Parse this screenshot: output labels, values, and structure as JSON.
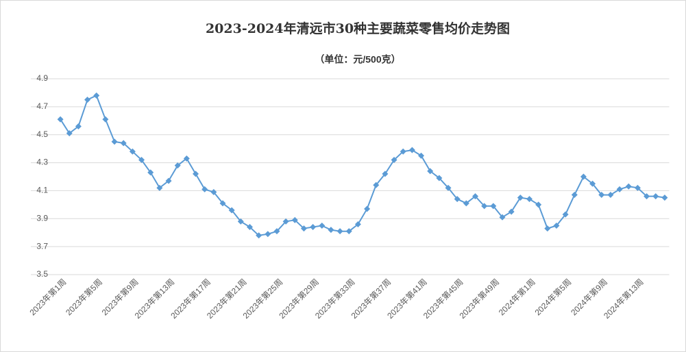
{
  "chart_data": {
    "type": "line",
    "title": "2023-2024年清远市30种主要蔬菜零售均价走势图",
    "subtitle": "（单位：元/500克）",
    "categories": [
      "2023年第1周",
      null,
      null,
      null,
      "2023年第5周",
      null,
      null,
      null,
      "2023年第9周",
      null,
      null,
      null,
      "2023年第13周",
      null,
      null,
      null,
      "2023年第17周",
      null,
      null,
      null,
      "2023年第21周",
      null,
      null,
      null,
      "2023年第25周",
      null,
      null,
      null,
      "2023年第29周",
      null,
      null,
      null,
      "2023年第33周",
      null,
      null,
      null,
      "2023年第37周",
      null,
      null,
      null,
      "2023年第41周",
      null,
      null,
      null,
      "2023年第45周",
      null,
      null,
      null,
      "2023年第49周",
      null,
      null,
      null,
      "2024年第1周",
      null,
      null,
      null,
      "2024年第5周",
      null,
      null,
      null,
      "2024年第9周",
      null,
      null,
      null,
      "2024年第13周",
      null,
      null,
      null
    ],
    "values": [
      4.61,
      4.51,
      4.56,
      4.75,
      4.78,
      4.61,
      4.45,
      4.44,
      4.38,
      4.32,
      4.23,
      4.12,
      4.17,
      4.28,
      4.33,
      4.22,
      4.11,
      4.09,
      4.01,
      3.96,
      3.88,
      3.84,
      3.78,
      3.79,
      3.81,
      3.88,
      3.89,
      3.83,
      3.84,
      3.85,
      3.82,
      3.81,
      3.81,
      3.86,
      3.97,
      4.14,
      4.22,
      4.32,
      4.38,
      4.39,
      4.35,
      4.24,
      4.19,
      4.12,
      4.04,
      4.01,
      4.06,
      3.99,
      3.99,
      3.91,
      3.95,
      4.05,
      4.04,
      4.0,
      3.83,
      3.85,
      3.93,
      4.07,
      4.2,
      4.15,
      4.07,
      4.07,
      4.11,
      4.13,
      4.12,
      4.06,
      4.06,
      4.05
    ],
    "color": "#5b9bd5",
    "ylim": [
      3.5,
      4.9
    ],
    "yticks": [
      3.5,
      3.7,
      3.9,
      4.1,
      4.3,
      4.5,
      4.7,
      4.9
    ],
    "grid": true,
    "marker": "diamond"
  }
}
